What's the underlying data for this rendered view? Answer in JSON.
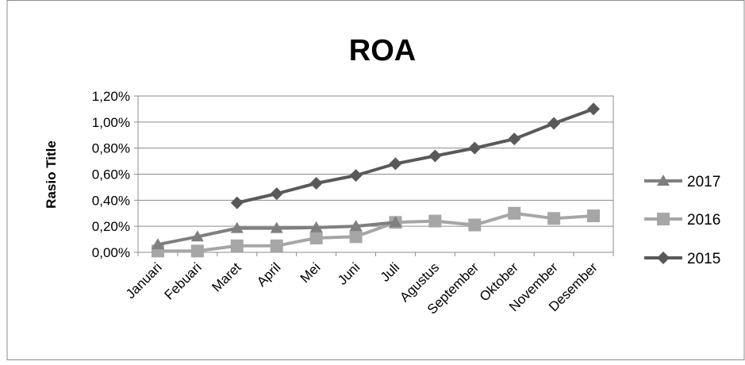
{
  "chart_data": {
    "type": "line",
    "title": "ROA",
    "ylabel": "Rasio Title",
    "xlabel": "",
    "categories": [
      "Januari",
      "Febuari",
      "Maret",
      "April",
      "Mei",
      "Juni",
      "Juli",
      "Agustus",
      "September",
      "Oktober",
      "November",
      "Desember"
    ],
    "ylim": [
      0,
      0.012
    ],
    "yticks": [
      "0,00%",
      "0,20%",
      "0,40%",
      "0,60%",
      "0,80%",
      "1,00%",
      "1,20%"
    ],
    "grid": "horizontal",
    "legend_position": "right",
    "series": [
      {
        "name": "2017",
        "marker": "triangle",
        "color": "#7f7f7f",
        "values": [
          0.0006,
          0.0012,
          0.00185,
          0.00185,
          0.0019,
          0.002,
          0.0023,
          null,
          null,
          null,
          null,
          null
        ]
      },
      {
        "name": "2016",
        "marker": "square",
        "color": "#a6a6a6",
        "values": [
          0.0001,
          0.0001,
          0.0005,
          0.0005,
          0.0011,
          0.0012,
          0.0023,
          0.0024,
          0.0021,
          0.003,
          0.0026,
          0.0028
        ]
      },
      {
        "name": "2015",
        "marker": "diamond",
        "color": "#595959",
        "values": [
          null,
          null,
          0.0038,
          0.0045,
          0.0053,
          0.0059,
          0.0068,
          0.0074,
          0.008,
          0.0087,
          0.0099,
          0.011
        ]
      }
    ]
  }
}
